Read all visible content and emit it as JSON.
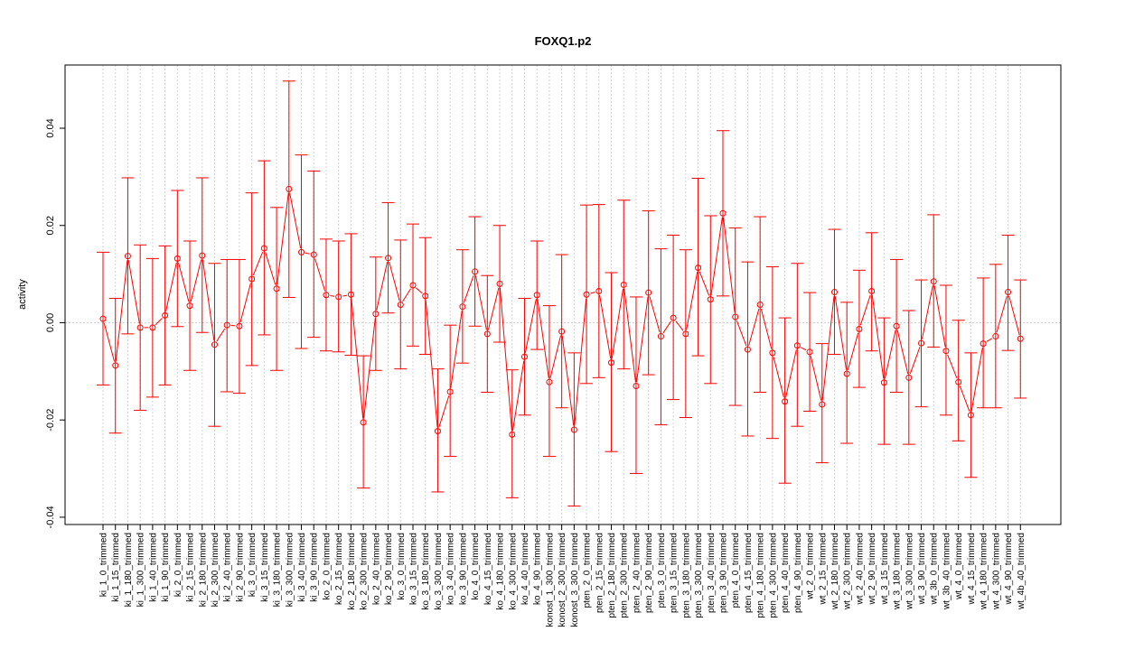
{
  "chart_data": {
    "type": "line",
    "title": "FOXQ1.p2",
    "ylabel": "activity",
    "xlabel": "",
    "ylim": [
      -0.0415,
      0.053
    ],
    "yticks": [
      -0.04,
      -0.02,
      0.0,
      0.02,
      0.04
    ],
    "ytick_labels": [
      "-0.04",
      "-0.02",
      "0.00",
      "0.02",
      "0.04"
    ],
    "grid": true,
    "series_color": "#ff0000",
    "grid_color": "#d3d3d3",
    "categories": [
      "ki_1_0_trimmed",
      "ki_1_15_trimmed",
      "ki_1_180_trimmed",
      "ki_1_300_trimmed",
      "ki_1_40_trimmed",
      "ki_1_90_trimmed",
      "ki_2_0_trimmed",
      "ki_2_15_trimmed",
      "ki_2_180_trimmed",
      "ki_2_300_trimmed",
      "ki_2_40_trimmed",
      "ki_2_90_trimmed",
      "ki_3_0_trimmed",
      "ki_3_15_trimmed",
      "ki_3_180_trimmed",
      "ki_3_300_trimmed",
      "ki_3_40_trimmed",
      "ki_3_90_trimmed",
      "ko_2_0_trimmed",
      "ko_2_15_trimmed",
      "ko_2_180_trimmed",
      "ko_2_300_trimmed",
      "ko_2_40_trimmed",
      "ko_2_90_trimmed",
      "ko_3_0_trimmed",
      "ko_3_15_trimmed",
      "ko_3_180_trimmed",
      "ko_3_300_trimmed",
      "ko_3_40_trimmed",
      "ko_3_90_trimmed",
      "ko_4_0_trimmed",
      "ko_4_15_trimmed",
      "ko_4_180_trimmed",
      "ko_4_300_trimmed",
      "ko_4_40_trimmed",
      "ko_4_90_trimmed",
      "konost_1_300_trimmed",
      "konost_2_300_trimmed",
      "konost_3_300_trimmed",
      "pten_2_0_trimmed",
      "pten_2_15_trimmed",
      "pten_2_180_trimmed",
      "pten_2_300_trimmed",
      "pten_2_40_trimmed",
      "pten_2_90_trimmed",
      "pten_3_0_trimmed",
      "pten_3_15_trimmed",
      "pten_3_180_trimmed",
      "pten_3_300_trimmed",
      "pten_3_40_trimmed",
      "pten_3_90_trimmed",
      "pten_4_0_trimmed",
      "pten_4_15_trimmed",
      "pten_4_180_trimmed",
      "pten_4_300_trimmed",
      "pten_4_40_trimmed",
      "pten_4_90_trimmed",
      "wt_2_0_trimmed",
      "wt_2_15_trimmed",
      "wt_2_180_trimmed",
      "wt_2_300_trimmed",
      "wt_2_40_trimmed",
      "wt_2_90_trimmed",
      "wt_3_15_trimmed",
      "wt_3_180_trimmed",
      "wt_3_300_trimmed",
      "wt_3_90_trimmed",
      "wt_3b_0_trimmed",
      "wt_3b_40_trimmed",
      "wt_4_0_trimmed",
      "wt_4_15_trimmed",
      "wt_4_180_trimmed",
      "wt_4_300_trimmed",
      "wt_4_90_trimmed",
      "wt_4b_40_trimmed"
    ],
    "values": [
      0.0008,
      -0.0088,
      0.0137,
      -0.001,
      -0.001,
      0.0015,
      0.0132,
      0.0035,
      0.0138,
      -0.0045,
      -0.0005,
      -0.0007,
      0.009,
      0.0153,
      0.007,
      0.0275,
      0.0145,
      0.014,
      0.0057,
      0.0053,
      0.0058,
      -0.0205,
      0.0018,
      0.0133,
      0.0037,
      0.0077,
      0.0055,
      -0.0223,
      -0.0142,
      0.0033,
      0.0105,
      -0.0023,
      0.008,
      -0.023,
      -0.007,
      0.0057,
      -0.0122,
      -0.0018,
      -0.022,
      0.0058,
      0.0065,
      -0.0082,
      0.0078,
      -0.013,
      0.0062,
      -0.0028,
      0.001,
      -0.0023,
      0.0113,
      0.0048,
      0.0225,
      0.0012,
      -0.0055,
      0.0037,
      -0.0062,
      -0.0162,
      -0.0047,
      -0.006,
      -0.0168,
      0.0063,
      -0.0105,
      -0.0013,
      0.0065,
      -0.0123,
      -0.0007,
      -0.0113,
      -0.0042,
      0.0085,
      -0.0058,
      -0.0122,
      -0.019,
      -0.0043,
      -0.0028,
      0.0063,
      -0.0033
    ],
    "upper": [
      0.0145,
      0.005,
      0.0298,
      0.016,
      0.0132,
      0.0158,
      0.0272,
      0.0168,
      0.0298,
      0.0122,
      0.013,
      0.013,
      0.0267,
      0.0333,
      0.0237,
      0.0497,
      0.0345,
      0.0312,
      0.0172,
      0.0168,
      0.0183,
      -0.0068,
      0.0135,
      0.0247,
      0.017,
      0.0203,
      0.0175,
      -0.0095,
      -0.0005,
      0.015,
      0.0218,
      0.0097,
      0.02,
      -0.0097,
      0.005,
      0.0168,
      0.0035,
      0.014,
      -0.0062,
      0.0242,
      0.0243,
      0.0103,
      0.0252,
      0.0053,
      0.023,
      0.0152,
      0.018,
      0.015,
      0.0297,
      0.022,
      0.0395,
      0.0195,
      0.0125,
      0.0218,
      0.0115,
      0.001,
      0.0122,
      0.0062,
      -0.0043,
      0.0192,
      0.0042,
      0.0108,
      0.0185,
      0.001,
      0.013,
      0.0025,
      0.0088,
      0.0222,
      0.0077,
      0.0005,
      -0.0062,
      0.0092,
      0.012,
      0.018,
      0.0088
    ],
    "lower": [
      -0.0128,
      -0.0227,
      -0.0023,
      -0.018,
      -0.0153,
      -0.0128,
      -0.0008,
      -0.0098,
      -0.002,
      -0.0213,
      -0.0142,
      -0.0145,
      -0.0088,
      -0.0025,
      -0.0098,
      0.0052,
      -0.0053,
      -0.003,
      -0.0058,
      -0.006,
      -0.0067,
      -0.034,
      -0.0098,
      0.002,
      -0.0095,
      -0.0048,
      -0.0065,
      -0.0348,
      -0.0275,
      -0.0083,
      -0.0007,
      -0.0143,
      -0.004,
      -0.036,
      -0.019,
      -0.0055,
      -0.0275,
      -0.0175,
      -0.0377,
      -0.0125,
      -0.0113,
      -0.0265,
      -0.0095,
      -0.031,
      -0.0107,
      -0.021,
      -0.0158,
      -0.0195,
      -0.0068,
      -0.0125,
      0.0055,
      -0.017,
      -0.0233,
      -0.0143,
      -0.0238,
      -0.033,
      -0.0213,
      -0.0182,
      -0.0288,
      -0.0065,
      -0.0248,
      -0.0133,
      -0.0058,
      -0.025,
      -0.0143,
      -0.025,
      -0.0173,
      -0.005,
      -0.019,
      -0.0243,
      -0.0318,
      -0.0175,
      -0.0175,
      -0.0057,
      -0.0155
    ]
  }
}
